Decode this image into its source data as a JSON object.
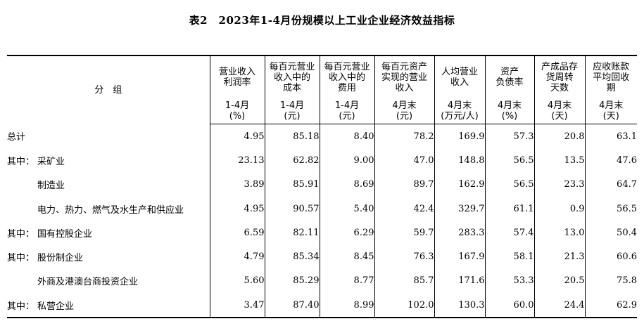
{
  "title": "表2　2023年1-4月份规模以上工业企业经济效益指标",
  "header": {
    "category_label": "分　组",
    "columns": [
      {
        "name": [
          "营业收入",
          "利润率"
        ],
        "period": "1-4月",
        "unit": "(%)"
      },
      {
        "name": [
          "每百元营业",
          "收入中的",
          "成本"
        ],
        "period": "1-4月",
        "unit": "(元)"
      },
      {
        "name": [
          "每百元营业",
          "收入中的",
          "费用"
        ],
        "period": "1-4月",
        "unit": "(元)"
      },
      {
        "name": [
          "每百元资产",
          "实现的营业",
          "收入"
        ],
        "period": "4月末",
        "unit": "(元)"
      },
      {
        "name": [
          "人均营业",
          "收入"
        ],
        "period": "4月末",
        "unit": "(万元/人)"
      },
      {
        "name": [
          "资产",
          "负债率"
        ],
        "period": "4月末",
        "unit": "(%)"
      },
      {
        "name": [
          "产成品存",
          "货周转",
          "天数"
        ],
        "period": "4月末",
        "unit": "(天)"
      },
      {
        "name": [
          "应收账款",
          "平均回收",
          "期"
        ],
        "period": "4月末",
        "unit": "(天)"
      }
    ]
  },
  "rows": [
    {
      "prefix": "",
      "label": "总计",
      "values": [
        "4.95",
        "85.18",
        "8.40",
        "78.2",
        "169.9",
        "57.3",
        "20.8",
        "63.1"
      ]
    },
    {
      "prefix": "其中：",
      "label": "采矿业",
      "values": [
        "23.13",
        "62.82",
        "9.00",
        "47.0",
        "148.8",
        "56.5",
        "13.5",
        "47.6"
      ]
    },
    {
      "prefix": "",
      "label": "制造业",
      "values": [
        "3.89",
        "85.91",
        "8.69",
        "89.7",
        "162.9",
        "56.5",
        "23.3",
        "64.7"
      ]
    },
    {
      "prefix": "",
      "label": "电力、热力、燃气及水生产和供应业",
      "values": [
        "4.95",
        "90.57",
        "5.40",
        "42.4",
        "329.7",
        "61.1",
        "0.9",
        "56.5"
      ]
    },
    {
      "prefix": "其中：",
      "label": "国有控股企业",
      "values": [
        "6.59",
        "82.11",
        "6.29",
        "59.7",
        "283.3",
        "57.4",
        "13.0",
        "50.4"
      ]
    },
    {
      "prefix": "其中：",
      "label": "股份制企业",
      "values": [
        "4.79",
        "85.34",
        "8.45",
        "76.3",
        "167.9",
        "58.1",
        "21.3",
        "60.6"
      ]
    },
    {
      "prefix": "",
      "label": "外商及港澳台商投资企业",
      "values": [
        "5.60",
        "85.29",
        "8.77",
        "85.7",
        "171.6",
        "53.3",
        "20.5",
        "75.8"
      ]
    },
    {
      "prefix": "其中：",
      "label": "私营企业",
      "values": [
        "3.47",
        "87.40",
        "8.99",
        "102.0",
        "130.3",
        "60.0",
        "24.4",
        "62.9"
      ]
    }
  ]
}
